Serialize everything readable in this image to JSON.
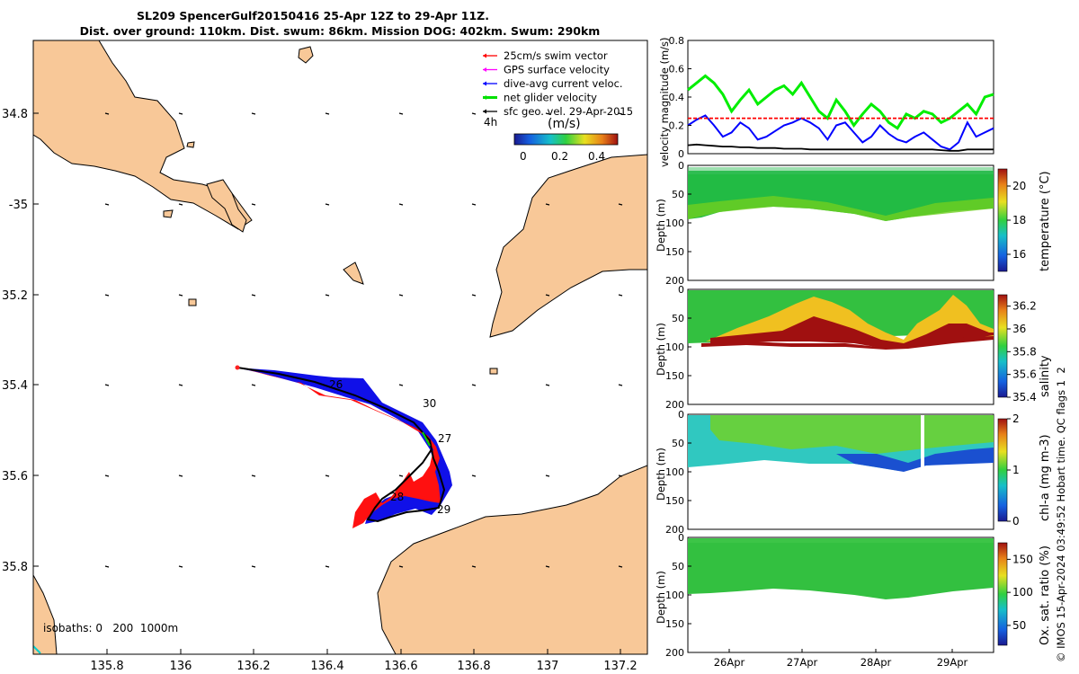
{
  "title": {
    "line1": "SL209 SpencerGulf20150416 25-Apr 12Z to 29-Apr 11Z.",
    "line2": "Dist. over ground: 110km. Dist. swum: 86km. Mission DOG: 402km. Swum: 290km"
  },
  "map": {
    "lon_ticks": [
      "135.8",
      "136",
      "136.2",
      "136.4",
      "136.6",
      "136.8",
      "137",
      "137.2"
    ],
    "lat_ticks": [
      "34.8",
      "-35",
      "35.2",
      "35.4",
      "35.6",
      "35.8"
    ],
    "legend": [
      {
        "label": "25cm/s swim vector",
        "color": "#ff0000"
      },
      {
        "label": "GPS surface velocity",
        "color": "#ff00ff"
      },
      {
        "label": "dive-avg current veloc.",
        "color": "#0000ff"
      },
      {
        "label": "net glider velocity",
        "color": "#00e000"
      },
      {
        "label": "sfc geo. vel. 29-Apr-2015",
        "color": "#000000"
      }
    ],
    "colorbar": {
      "interval": "4h",
      "unit": "(m/s)",
      "ticks": [
        "0",
        "0.2",
        "0.4"
      ]
    },
    "day_labels": [
      "26",
      "27",
      "28",
      "29",
      "30"
    ],
    "isobaths": "isobaths: 0   200  1000m",
    "land_color": "#f8c898"
  },
  "chart_data": [
    {
      "type": "line",
      "ylabel": "velocity magnitude (m/s)",
      "ylim": [
        0,
        0.8
      ],
      "yticks": [
        "0",
        "0.2",
        "0.4",
        "0.6",
        "0.8"
      ],
      "x_range": [
        "25-Apr 12Z",
        "29-Apr 11Z"
      ],
      "series": [
        {
          "color": "#00ee00",
          "values": [
            0.45,
            0.5,
            0.55,
            0.5,
            0.42,
            0.3,
            0.38,
            0.45,
            0.35,
            0.4,
            0.45,
            0.48,
            0.42,
            0.5,
            0.4,
            0.3,
            0.25,
            0.38,
            0.3,
            0.2,
            0.28,
            0.35,
            0.3,
            0.22,
            0.18,
            0.28,
            0.25,
            0.3,
            0.28,
            0.22,
            0.25,
            0.3,
            0.35,
            0.28,
            0.4,
            0.42
          ]
        },
        {
          "color": "#0000ff",
          "values": [
            0.2,
            0.24,
            0.27,
            0.2,
            0.12,
            0.15,
            0.22,
            0.18,
            0.1,
            0.12,
            0.16,
            0.2,
            0.22,
            0.25,
            0.22,
            0.18,
            0.1,
            0.2,
            0.22,
            0.15,
            0.08,
            0.12,
            0.2,
            0.14,
            0.1,
            0.08,
            0.12,
            0.15,
            0.1,
            0.05,
            0.03,
            0.08,
            0.22,
            0.12,
            0.15,
            0.18
          ]
        },
        {
          "color": "#ff0000",
          "values": [
            0.25,
            0.25,
            0.25,
            0.25,
            0.25,
            0.25,
            0.25,
            0.25,
            0.25,
            0.25,
            0.25,
            0.25,
            0.25,
            0.25,
            0.25,
            0.25,
            0.25,
            0.25,
            0.25,
            0.25,
            0.25,
            0.25,
            0.25,
            0.25,
            0.25,
            0.25,
            0.25,
            0.25,
            0.25,
            0.25,
            0.25,
            0.25,
            0.25,
            0.25,
            0.25,
            0.25
          ]
        },
        {
          "color": "#000000",
          "values": [
            0.06,
            0.065,
            0.06,
            0.055,
            0.05,
            0.05,
            0.045,
            0.045,
            0.04,
            0.04,
            0.04,
            0.035,
            0.035,
            0.035,
            0.03,
            0.03,
            0.03,
            0.03,
            0.03,
            0.03,
            0.03,
            0.03,
            0.03,
            0.03,
            0.03,
            0.03,
            0.03,
            0.03,
            0.03,
            0.025,
            0.02,
            0.02,
            0.03,
            0.03,
            0.03,
            0.03
          ]
        }
      ]
    },
    {
      "type": "heatmap",
      "ylabel": "Depth (m)",
      "ylim": [
        0,
        200
      ],
      "yticks": [
        "0",
        "50",
        "100",
        "150",
        "200"
      ],
      "clabel": "temperature (°C)",
      "clim": [
        15,
        21
      ],
      "cticks": [
        "16",
        "18",
        "20"
      ]
    },
    {
      "type": "heatmap",
      "ylabel": "Depth (m)",
      "ylim": [
        0,
        200
      ],
      "yticks": [
        "0",
        "50",
        "100",
        "150",
        "200"
      ],
      "clabel": "salinity",
      "clim": [
        35.4,
        36.3
      ],
      "cticks": [
        "35.4",
        "35.6",
        "35.8",
        "36",
        "36.2"
      ]
    },
    {
      "type": "heatmap",
      "ylabel": "Depth (m)",
      "ylim": [
        0,
        200
      ],
      "yticks": [
        "0",
        "50",
        "100",
        "150",
        "200"
      ],
      "clabel": "chl-a (mg m-3)",
      "clim": [
        0,
        2
      ],
      "cticks": [
        "0",
        "1",
        "2"
      ]
    },
    {
      "type": "heatmap",
      "ylabel": "Depth (m)",
      "ylim": [
        0,
        200
      ],
      "yticks": [
        "0",
        "50",
        "100",
        "150",
        "200"
      ],
      "clabel": "Ox. sat. ratio (%)",
      "clim": [
        20,
        175
      ],
      "cticks": [
        "50",
        "100",
        "150"
      ],
      "xticks": [
        "26Apr",
        "27Apr",
        "28Apr",
        "29Apr"
      ]
    }
  ],
  "side_note": "© IMOS 15-Apr-2024 03:49:52 Hobart time. QC flags 1  2"
}
